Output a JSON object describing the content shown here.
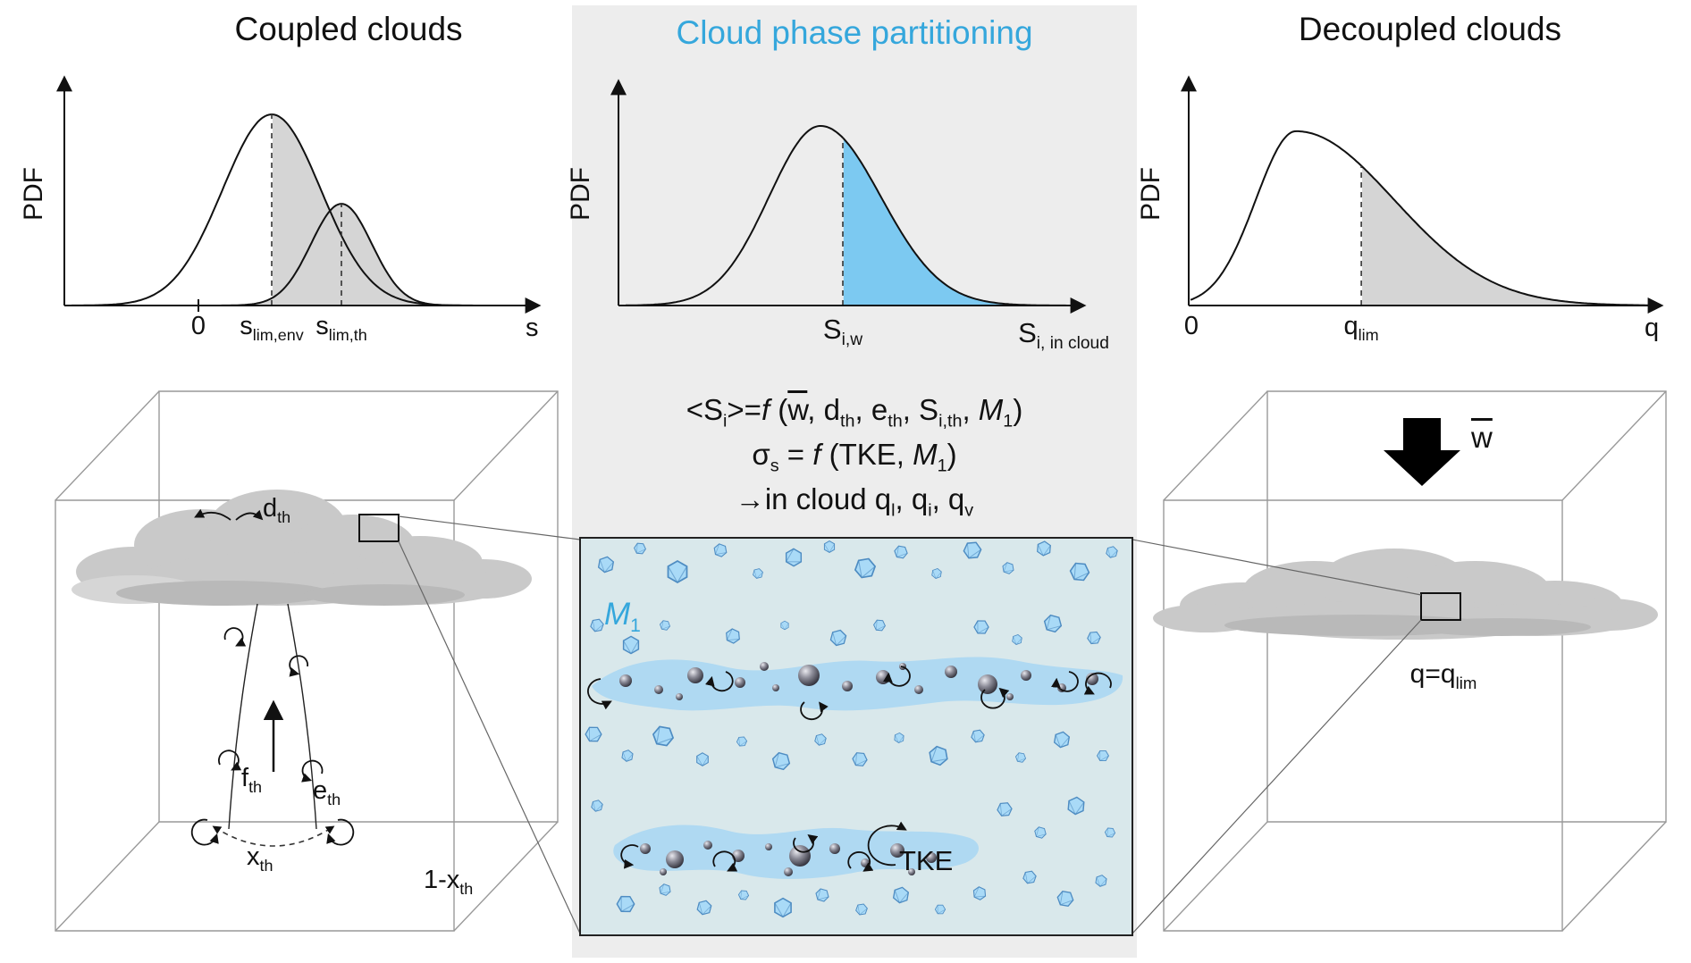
{
  "colors": {
    "accent_blue": "#35A7DC",
    "blue_fill": "#7CC9F1",
    "gray_fill": "#D5D5D5",
    "strip_bg": "#EDEDED",
    "zoom_bg": "#D9E8EB",
    "band_blue": "#AFD9F2",
    "crystal_fill": "#A9DAF7",
    "crystal_stroke": "#4E8CC2",
    "cloud_gray": "#C9C9C9",
    "cube_line": "#999999"
  },
  "coupled": {
    "title": "Coupled clouds",
    "ylabel": "PDF",
    "xlabel": "s",
    "ticks": {
      "zero": "0",
      "lim_env": {
        "base": "s",
        "sub": "lim,env"
      },
      "lim_th": {
        "base": "s",
        "sub": "lim,th"
      }
    },
    "box_labels": {
      "d": {
        "base": "d",
        "sub": "th"
      },
      "f": {
        "base": "f",
        "sub": "th"
      },
      "e": {
        "base": "e",
        "sub": "th"
      },
      "x": {
        "base": "x",
        "sub": "th"
      },
      "remainder": {
        "base": "1-x",
        "sub": "th"
      }
    }
  },
  "partitioning": {
    "title": "Cloud phase partitioning",
    "ylabel": "PDF",
    "xlabel": {
      "base": "S",
      "sub": "i, in cloud"
    },
    "tick": {
      "base": "S",
      "sub": "i,w"
    },
    "equations": {
      "eq1": {
        "p1": "<S",
        "s1": "i",
        "p2": ">=",
        "f": "f",
        "p3": " (",
        "w": "w",
        "p4": ", d",
        "s2": "th",
        "p5": ", e",
        "s3": "th",
        "p6": ", S",
        "s4": "i,th",
        "p7": ", ",
        "m": "M",
        "s5": "1",
        "p8": ")"
      },
      "eq2": {
        "p1": "σ",
        "s1": "s",
        "p2": " = ",
        "f": "f",
        "p3": " (TKE, ",
        "m": "M",
        "s2": "1",
        "p4": ")"
      },
      "eq3": {
        "p1": "→in cloud q",
        "s1": "l",
        "p2": ", q",
        "s2": "i",
        "p3": ", q",
        "s3": "v"
      }
    },
    "zoom_labels": {
      "m1": {
        "base": "M",
        "sub": "1"
      },
      "tke": "TKE"
    }
  },
  "decoupled": {
    "title": "Decoupled clouds",
    "ylabel": "PDF",
    "xlabel": "q",
    "ticks": {
      "zero": "0",
      "qlim": {
        "base": "q",
        "sub": "lim"
      }
    },
    "wbar": "w",
    "cloud_label": {
      "base": "q=q",
      "sub": "lim"
    }
  },
  "chart_data": [
    {
      "id": "coupled-pdf",
      "type": "area",
      "title": "Coupled clouds",
      "xlabel": "s",
      "ylabel": "PDF",
      "x_ticks": [
        {
          "pos": 0.284,
          "label": "0"
        },
        {
          "pos": 0.448,
          "label": "s_lim,env"
        },
        {
          "pos": 0.604,
          "label": "s_lim,th"
        }
      ],
      "curves": [
        {
          "name": "environment saturation-deficit PDF",
          "shape": "gaussian",
          "peak": 0.448,
          "sigma_l": 0.11,
          "sigma_r": 0.11,
          "amp": 0.866,
          "shade_from": 0.448
        },
        {
          "name": "thermal saturation-deficit PDF",
          "shape": "gaussian",
          "peak": 0.604,
          "sigma_l": 0.068,
          "sigma_r": 0.068,
          "amp": 0.461,
          "shade_from": 0.0
        }
      ],
      "thresholds": [
        0.448,
        0.604
      ],
      "shade_color_key": "gray_fill",
      "grid": false,
      "legend": false
    },
    {
      "id": "phase-partitioning-pdf",
      "type": "area",
      "title": "Cloud phase partitioning",
      "xlabel": "S_i, in cloud",
      "ylabel": "PDF",
      "x_ticks": [
        {
          "pos": 0.486,
          "label": "S_i,w"
        }
      ],
      "curves": [
        {
          "name": "in-cloud ice saturation ratio PDF",
          "shape": "skewed-gaussian",
          "peak": 0.436,
          "sigma_l": 0.115,
          "sigma_r": 0.135,
          "amp": 0.814,
          "shade_from": 0.486
        }
      ],
      "thresholds": [
        0.486
      ],
      "shade_color_key": "blue_fill",
      "grid": false,
      "legend": false
    },
    {
      "id": "decoupled-pdf",
      "type": "area",
      "title": "Decoupled clouds",
      "xlabel": "q",
      "ylabel": "PDF",
      "x_ticks": [
        {
          "pos": 0.0,
          "label": "0"
        },
        {
          "pos": 0.369,
          "label": "q_lim"
        }
      ],
      "curves": [
        {
          "name": "total-water PDF",
          "shape": "skewed-gaussian",
          "peak": 0.228,
          "sigma_l": 0.087,
          "sigma_r": 0.212,
          "amp": 0.79,
          "shade_from": 0.369
        }
      ],
      "thresholds": [
        0.369
      ],
      "shade_color_key": "gray_fill",
      "grid": false,
      "legend": false
    }
  ]
}
